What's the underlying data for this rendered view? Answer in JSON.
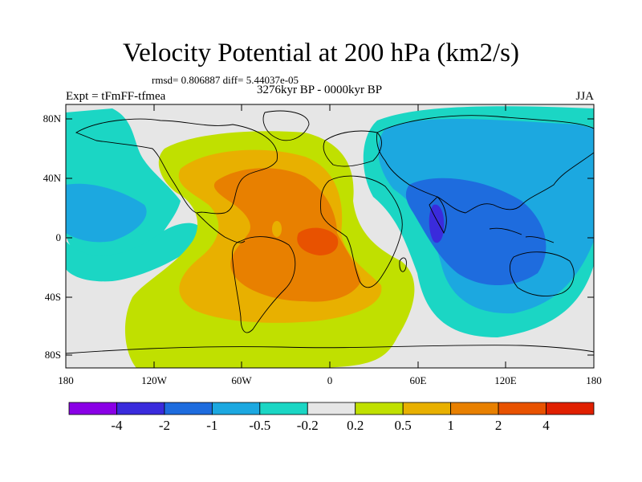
{
  "title": "Velocity Potential at 200 hPa (km2/s)",
  "stats": "rmsd= 0.806887 diff= 5.44037e-05",
  "period": "3276kyr BP - 0000kyr BP",
  "experiment": "Expt = tFmFF-tfmea",
  "season": "JJA",
  "lat_ticks": [
    "80N",
    "40N",
    "0",
    "40S",
    "80S"
  ],
  "lon_ticks": [
    "180",
    "120W",
    "60W",
    "0",
    "60E",
    "120E",
    "180"
  ],
  "colorbar": {
    "colors": [
      "#8a00e6",
      "#3a2bdc",
      "#1e6cde",
      "#1ca8e0",
      "#1bd6c4",
      "#e6e6e6",
      "#c0e000",
      "#e8b000",
      "#e88000",
      "#e85200",
      "#e02000"
    ],
    "labels": [
      "-4",
      "-2",
      "-1",
      "-0.5",
      "-0.2",
      "0.2",
      "0.5",
      "1",
      "2",
      "4"
    ]
  }
}
